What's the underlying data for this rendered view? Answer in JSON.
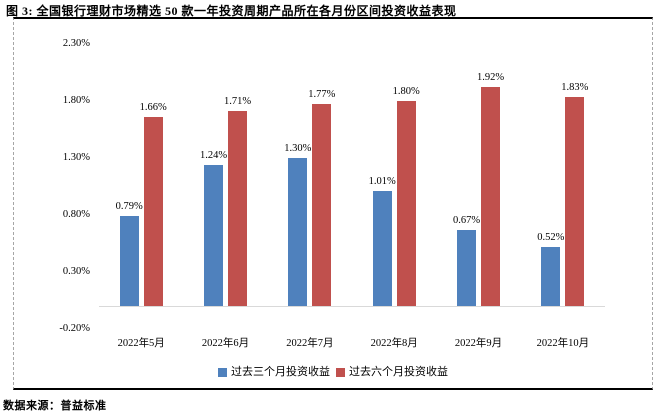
{
  "figure": {
    "title": "图 3: 全国银行理财市场精选 50 款一年投资周期产品所在各月份区间投资收益表现",
    "source": "数据来源：普益标准"
  },
  "chart_data": {
    "type": "bar",
    "title": "全国银行理财市场精选 50 款一年投资周期产品所在各月份区间投资收益表现",
    "categories": [
      "2022年5月",
      "2022年6月",
      "2022年7月",
      "2022年8月",
      "2022年9月",
      "2022年10月"
    ],
    "series": [
      {
        "name": "过去三个月投资收益",
        "color": "#4F81BD",
        "values": [
          0.79,
          1.24,
          1.3,
          1.01,
          0.67,
          0.52
        ],
        "labels": [
          "0.79%",
          "1.24%",
          "1.30%",
          "1.01%",
          "0.67%",
          "0.52%"
        ]
      },
      {
        "name": "过去六个月投资收益",
        "color": "#C0504D",
        "values": [
          1.66,
          1.71,
          1.77,
          1.8,
          1.92,
          1.83
        ],
        "labels": [
          "1.66%",
          "1.71%",
          "1.77%",
          "1.80%",
          "1.92%",
          "1.83%"
        ]
      }
    ],
    "y_axis": {
      "unit": "%",
      "ticks": [
        "2.30%",
        "1.80%",
        "1.30%",
        "0.80%",
        "0.30%",
        "-0.20%"
      ],
      "tick_values": [
        2.3,
        1.8,
        1.3,
        0.8,
        0.3,
        -0.2
      ],
      "min": -0.2,
      "max": 2.3
    },
    "xlabel": "",
    "ylabel": "",
    "grid": false,
    "legend_position": "bottom",
    "data_labels": true
  }
}
